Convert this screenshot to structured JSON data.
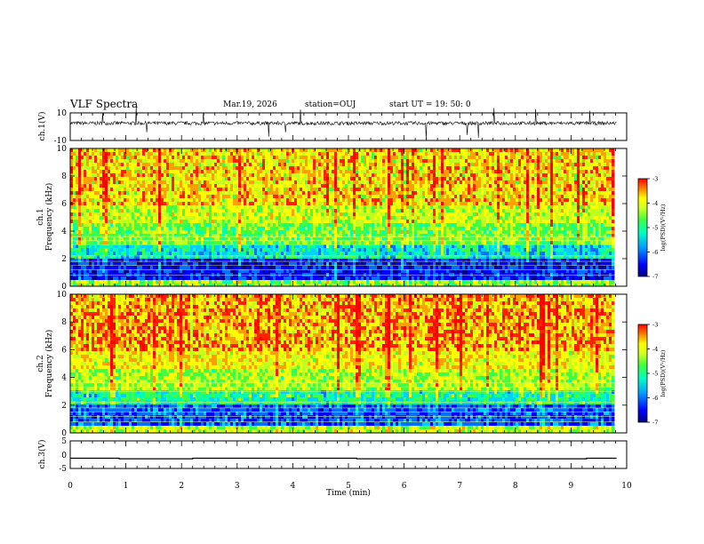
{
  "header": {
    "title": "VLF Spectra",
    "date": "Mar.19, 2026",
    "station": "station=OUJ",
    "start": "start  UT =   19: 50: 0"
  },
  "colors": {
    "palette": [
      "#000080",
      "#0000ff",
      "#0070ff",
      "#00d0ff",
      "#00ffb0",
      "#40ff40",
      "#c0ff20",
      "#ffff00",
      "#ffa000",
      "#ff2000",
      "#ff0000"
    ]
  },
  "chart_data": [
    {
      "type": "line",
      "name": "ch1-waveform",
      "ylabel": "ch.1(V)",
      "ylim": [
        -10,
        10
      ],
      "ytick_labels": [
        "10",
        "-10"
      ],
      "baseline": 2.5,
      "xlim": [
        0,
        10
      ]
    },
    {
      "type": "heatmap",
      "name": "ch1-spectrogram",
      "ylabel": "ch.1",
      "ylabel2": "Frequency (kHz)",
      "ylim": [
        0,
        10
      ],
      "ytick_labels": [
        "0",
        "2",
        "4",
        "6",
        "8",
        "10"
      ],
      "xlim": [
        0,
        9.8
      ],
      "colorbar": {
        "label": "log(PSD)(V²/Hz)",
        "range": [
          -7,
          -3
        ],
        "tick_labels": [
          "-3",
          "-4",
          "-5",
          "-6",
          "-7"
        ]
      }
    },
    {
      "type": "heatmap",
      "name": "ch2-spectrogram",
      "ylabel": "ch.2",
      "ylabel2": "Frequency (kHz)",
      "ylim": [
        0,
        10
      ],
      "ytick_labels": [
        "0",
        "2",
        "4",
        "6",
        "8",
        "10"
      ],
      "xlim": [
        0,
        9.8
      ],
      "colorbar": {
        "label": "log(PSD)(V²/Hz)",
        "range": [
          -7,
          -3
        ],
        "tick_labels": [
          "-3",
          "-4",
          "-5",
          "-6",
          "-7"
        ]
      }
    },
    {
      "type": "line",
      "name": "ch3-signal",
      "ylabel": "ch.3(V)",
      "ylim": [
        -5,
        5
      ],
      "ytick_labels": [
        "5",
        "0",
        "-5"
      ],
      "x": [
        0,
        0.88,
        0.88,
        2.2,
        2.2,
        5.15,
        5.15,
        9.28,
        9.28,
        9.82
      ],
      "y": [
        0,
        0,
        -0.2,
        -0.2,
        0,
        0,
        -0.2,
        -0.2,
        0,
        0
      ],
      "xlabel": "Time (min)",
      "xlim": [
        0,
        10
      ],
      "xtick_labels": [
        "0",
        "1",
        "2",
        "3",
        "4",
        "5",
        "6",
        "7",
        "8",
        "9",
        "10"
      ]
    }
  ]
}
